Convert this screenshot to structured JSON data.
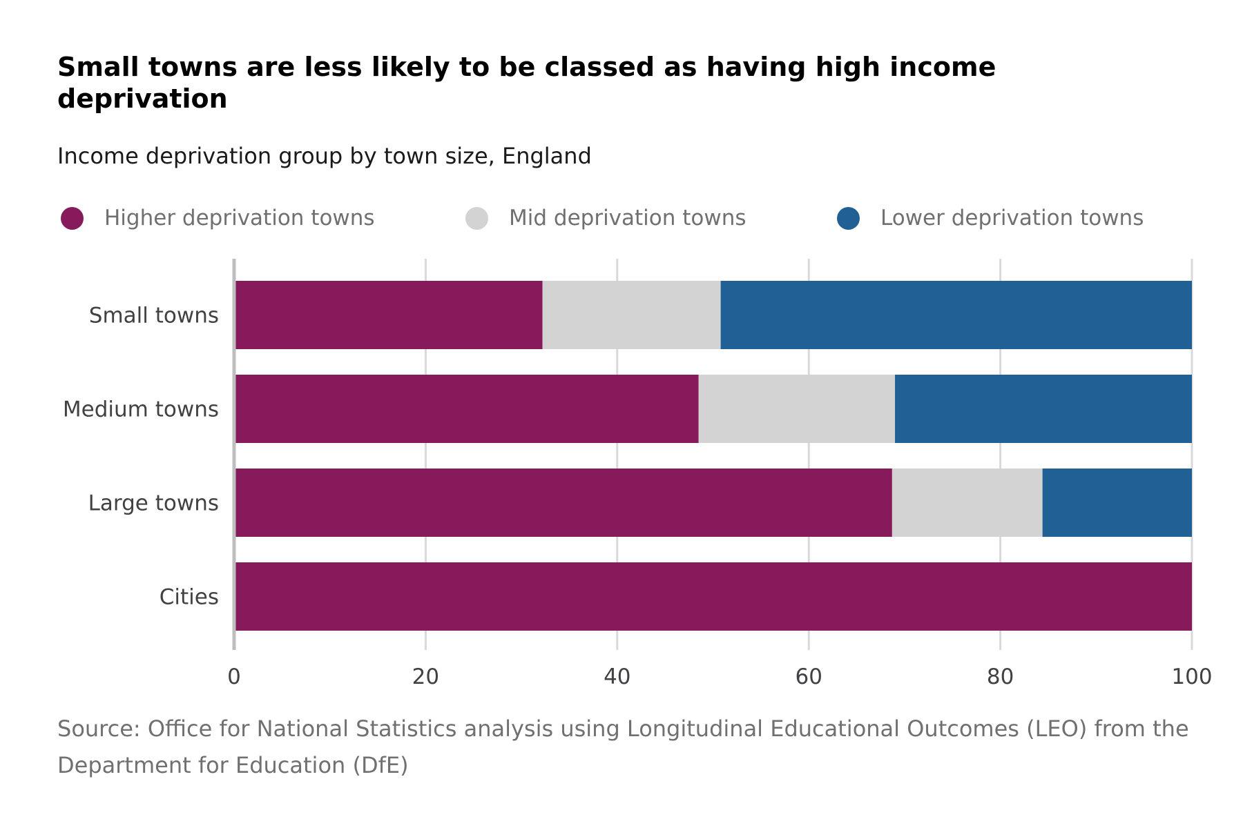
{
  "chart_data": {
    "type": "bar",
    "orientation": "horizontal",
    "stacked": true,
    "title": "Small towns are less likely to be classed as having high income deprivation",
    "subtitle": "Income deprivation group by town size, England",
    "categories": [
      "Small towns",
      "Medium towns",
      "Large towns",
      "Cities"
    ],
    "series": [
      {
        "name": "Higher deprivation towns",
        "color": "#871A5B",
        "values": [
          32.2,
          48.5,
          68.7,
          100
        ]
      },
      {
        "name": "Mid deprivation towns",
        "color": "#D3D3D3",
        "values": [
          18.6,
          20.5,
          15.7,
          0
        ]
      },
      {
        "name": "Lower deprivation towns",
        "color": "#206095",
        "values": [
          49.2,
          31.0,
          15.6,
          0
        ]
      }
    ],
    "xlim": [
      0,
      100
    ],
    "xticks": [
      0,
      20,
      40,
      60,
      80,
      100
    ],
    "xlabel": "",
    "ylabel": "",
    "grid": "vertical",
    "legend_position": "top",
    "source": "Source: Office for National Statistics analysis using Longitudinal Educational Outcomes (LEO) from the Department for Education (DfE)"
  }
}
